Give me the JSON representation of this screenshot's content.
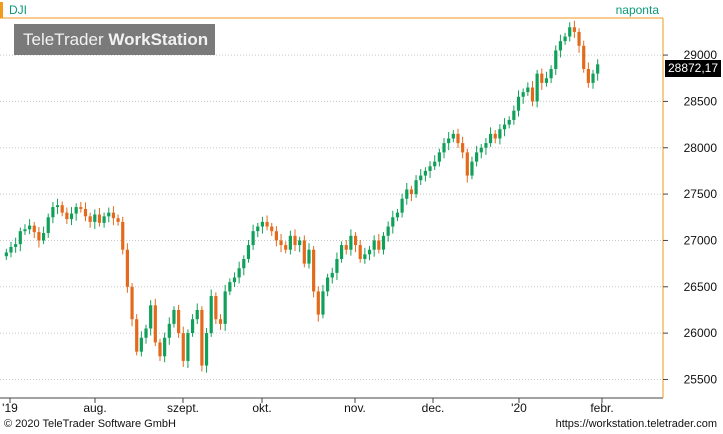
{
  "header": {
    "symbol": "DJI",
    "period": "naponta"
  },
  "watermark": {
    "brand": "TeleTrader",
    "product": "WorkStation"
  },
  "last_price": "28872,17",
  "footer": {
    "copyright": "© 2020 TeleTrader Software GmbH",
    "url": "https://workstation.teletrader.com"
  },
  "colors": {
    "up": "#11a05a",
    "down": "#e36a1c",
    "grid": "#c8c8c8",
    "accent": "#f29a1c"
  },
  "chart_data": {
    "type": "candlestick",
    "ylim": [
      25300,
      29400
    ],
    "y_ticks": [
      "25500",
      "26000",
      "26500",
      "27000",
      "27500",
      "28000",
      "28500",
      "29000"
    ],
    "x_ticks": [
      "'19",
      "aug.",
      "szept.",
      "okt.",
      "nov.",
      "dec.",
      "'20",
      "febr."
    ],
    "grid": "dotted horizontal",
    "closes": [
      26870,
      26930,
      26960,
      27100,
      27120,
      27160,
      27090,
      27000,
      27080,
      27250,
      27360,
      27380,
      27300,
      27230,
      27290,
      27360,
      27340,
      27260,
      27200,
      27280,
      27190,
      27260,
      27300,
      27240,
      27200,
      26900,
      26500,
      26150,
      25800,
      25950,
      26050,
      26300,
      25900,
      25750,
      25950,
      26100,
      26250,
      26000,
      25700,
      26000,
      26150,
      26250,
      25650,
      26000,
      26400,
      26150,
      26100,
      26450,
      26550,
      26600,
      26700,
      26800,
      26950,
      27100,
      27150,
      27200,
      27150,
      27100,
      27000,
      26950,
      26900,
      27050,
      26950,
      27000,
      26750,
      26900,
      26450,
      26200,
      26450,
      26600,
      26650,
      26800,
      26950,
      26900,
      27050,
      26950,
      26800,
      26850,
      26900,
      27000,
      26900,
      27050,
      27150,
      27250,
      27300,
      27450,
      27550,
      27500,
      27650,
      27700,
      27750,
      27800,
      27850,
      27950,
      28050,
      28100,
      28150,
      28050,
      27950,
      27700,
      27850,
      27950,
      28000,
      28050,
      28150,
      28100,
      28200,
      28250,
      28300,
      28400,
      28550,
      28600,
      28650,
      28500,
      28800,
      28700,
      28750,
      28850,
      29050,
      29150,
      29200,
      29300,
      29250,
      29100,
      28850,
      28700,
      28800,
      28900
    ],
    "last": 28872.17
  }
}
